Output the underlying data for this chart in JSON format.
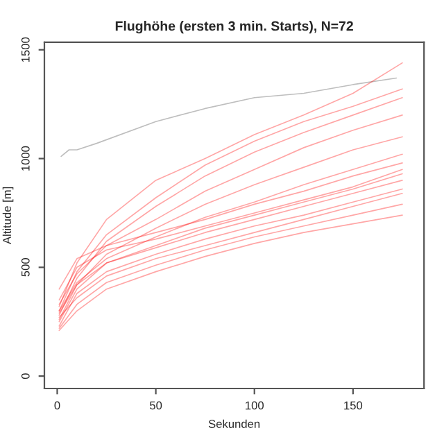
{
  "chart_data": {
    "type": "line",
    "title": "Flughöhe (ersten 3 min. Starts), N=72",
    "xlabel": "Sekunden",
    "ylabel": "Altitude [m]",
    "x": [
      1,
      10,
      25,
      50,
      75,
      100,
      125,
      150,
      175
    ],
    "xlim": [
      -6.5,
      186
    ],
    "xticks": [
      0,
      50,
      100,
      150
    ],
    "ylim": [
      -57,
      1535
    ],
    "yticks": [
      0,
      500,
      1000,
      1500
    ],
    "grid": false,
    "legend": false,
    "line_style": "solid",
    "series": [
      {
        "color": "#bebebe",
        "x": [
          2,
          6,
          10,
          20,
          50,
          75,
          100,
          125,
          150,
          172
        ],
        "values": [
          1010,
          1040,
          1040,
          1070,
          1170,
          1230,
          1280,
          1300,
          1340,
          1370
        ]
      },
      {
        "color": "#ff0000",
        "values": [
          320,
          520,
          720,
          900,
          1000,
          1110,
          1200,
          1300,
          1440
        ]
      },
      {
        "color": "#ff0000",
        "values": [
          300,
          480,
          650,
          820,
          970,
          1080,
          1170,
          1240,
          1320
        ]
      },
      {
        "color": "#ff0000",
        "values": [
          280,
          450,
          620,
          780,
          920,
          1030,
          1120,
          1200,
          1280
        ]
      },
      {
        "color": "#ff0000",
        "values": [
          330,
          470,
          600,
          720,
          850,
          950,
          1050,
          1130,
          1200
        ]
      },
      {
        "color": "#ff0000",
        "values": [
          260,
          420,
          560,
          680,
          790,
          880,
          960,
          1040,
          1100
        ]
      },
      {
        "color": "#ff0000",
        "values": [
          300,
          430,
          540,
          640,
          730,
          800,
          880,
          950,
          1020
        ]
      },
      {
        "color": "#ff0000",
        "values": [
          250,
          400,
          520,
          600,
          680,
          740,
          800,
          860,
          930
        ]
      },
      {
        "color": "#ff0000",
        "values": [
          290,
          420,
          520,
          590,
          660,
          720,
          780,
          840,
          900
        ]
      },
      {
        "color": "#ff0000",
        "values": [
          230,
          380,
          480,
          560,
          630,
          690,
          740,
          800,
          860
        ]
      },
      {
        "color": "#ff0000",
        "values": [
          270,
          360,
          460,
          540,
          600,
          660,
          720,
          780,
          840
        ]
      },
      {
        "color": "#ff0000",
        "values": [
          220,
          330,
          430,
          510,
          580,
          640,
          690,
          740,
          790
        ]
      },
      {
        "color": "#ff0000",
        "values": [
          210,
          300,
          400,
          480,
          550,
          610,
          660,
          700,
          740
        ]
      },
      {
        "color": "#ff0000",
        "values": [
          400,
          540,
          600,
          660,
          720,
          790,
          850,
          920,
          980
        ]
      },
      {
        "color": "#ff0000",
        "values": [
          350,
          500,
          580,
          630,
          690,
          750,
          810,
          870,
          950
        ]
      }
    ]
  }
}
